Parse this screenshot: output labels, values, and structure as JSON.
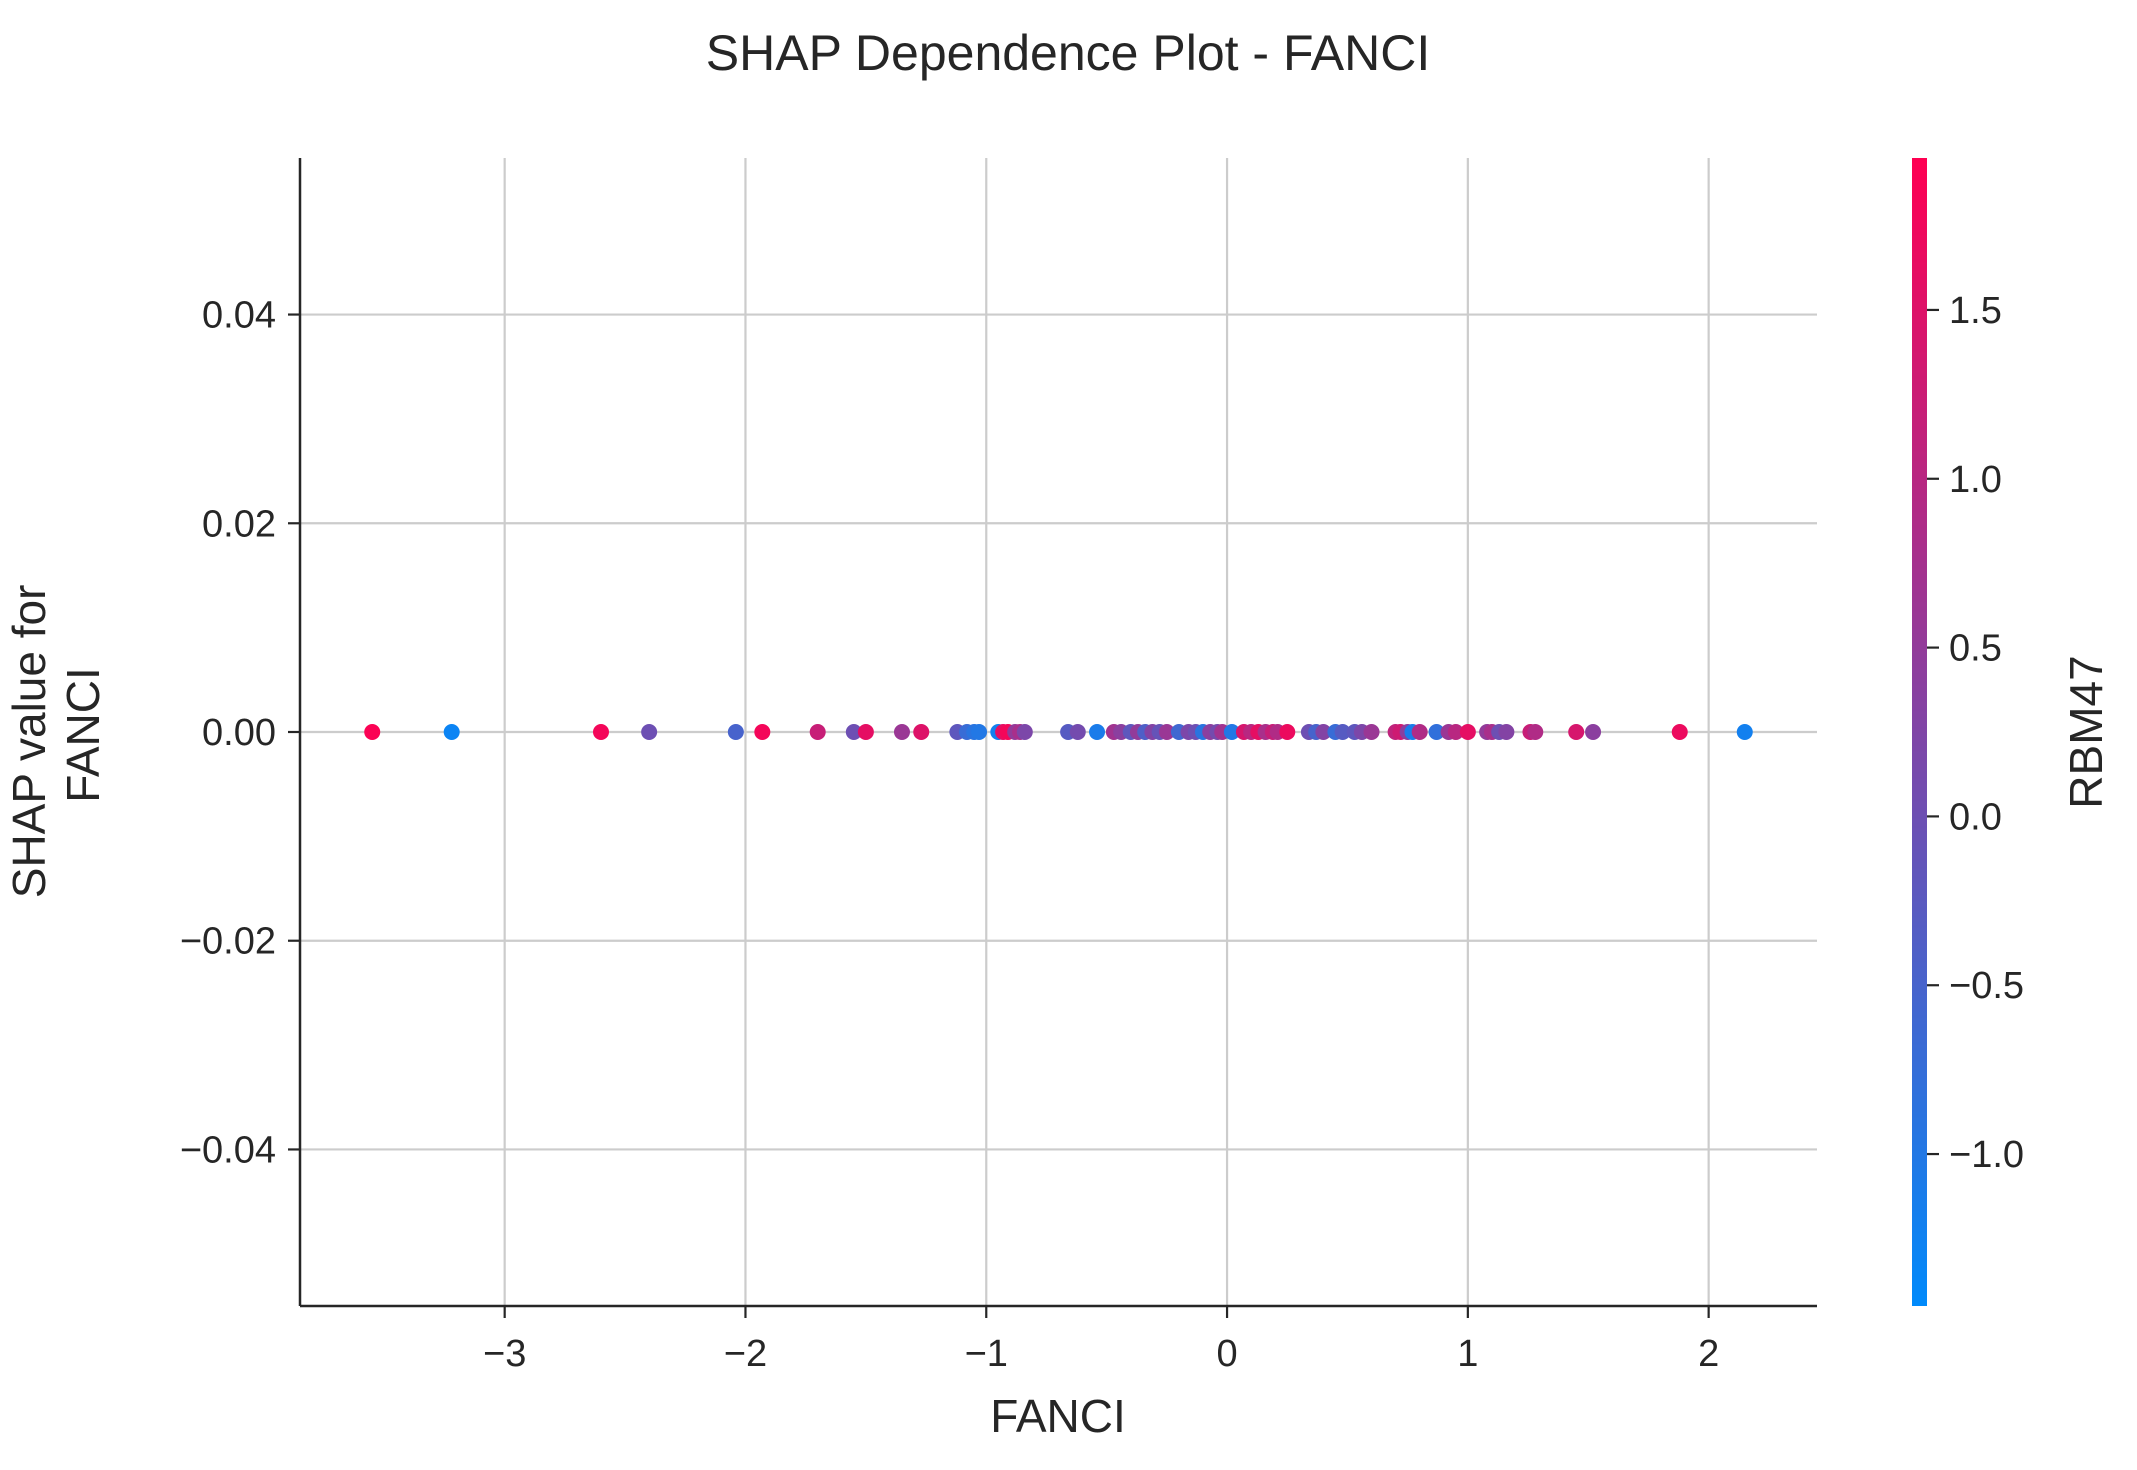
{
  "chart_data": {
    "type": "scatter",
    "title": "SHAP Dependence Plot - FANCI",
    "xlabel": "FANCI",
    "ylabel_lines": [
      "SHAP value for",
      "FANCI"
    ],
    "xlim": [
      -3.85,
      2.45
    ],
    "ylim": [
      -0.055,
      0.055
    ],
    "x_ticks": [
      -3,
      -2,
      -1,
      0,
      1,
      2
    ],
    "x_tick_labels": [
      "−3",
      "−2",
      "−1",
      "0",
      "1",
      "2"
    ],
    "y_ticks": [
      0.04,
      0.02,
      0.0,
      -0.02,
      -0.04
    ],
    "y_tick_labels": [
      "0.04",
      "0.02",
      "0.00",
      "−0.02",
      "−0.04"
    ],
    "grid": true,
    "colorbar": {
      "label": "RBM47",
      "range": [
        -1.45,
        1.95
      ],
      "ticks": [
        1.5,
        1.0,
        0.5,
        0.0,
        -0.5,
        -1.0
      ],
      "tick_labels": [
        "1.5",
        "1.0",
        "0.5",
        "0.0",
        "−0.5",
        "−1.0"
      ],
      "colormap": [
        "#008afb",
        "#ff0052"
      ]
    },
    "points": [
      {
        "x": -3.55,
        "y": 0.0,
        "c": 1.9
      },
      {
        "x": -3.22,
        "y": 0.0,
        "c": -1.3
      },
      {
        "x": -2.6,
        "y": 0.0,
        "c": 1.8
      },
      {
        "x": -2.4,
        "y": 0.0,
        "c": 0.0
      },
      {
        "x": -2.04,
        "y": 0.0,
        "c": -0.5
      },
      {
        "x": -1.93,
        "y": 0.0,
        "c": 1.8
      },
      {
        "x": -1.7,
        "y": 0.0,
        "c": 1.2
      },
      {
        "x": -1.55,
        "y": 0.0,
        "c": 0.0
      },
      {
        "x": -1.5,
        "y": 0.0,
        "c": 1.6
      },
      {
        "x": -1.35,
        "y": 0.0,
        "c": 0.6
      },
      {
        "x": -1.27,
        "y": 0.0,
        "c": 1.5
      },
      {
        "x": -1.12,
        "y": 0.0,
        "c": -0.2
      },
      {
        "x": -1.08,
        "y": 0.0,
        "c": -0.7
      },
      {
        "x": -1.05,
        "y": 0.0,
        "c": -0.9
      },
      {
        "x": -1.03,
        "y": 0.0,
        "c": -1.0
      },
      {
        "x": -0.95,
        "y": 0.0,
        "c": -1.2
      },
      {
        "x": -0.93,
        "y": 0.0,
        "c": 1.6
      },
      {
        "x": -0.91,
        "y": 0.0,
        "c": 1.8
      },
      {
        "x": -0.88,
        "y": 0.0,
        "c": 0.5
      },
      {
        "x": -0.86,
        "y": 0.0,
        "c": 0.8
      },
      {
        "x": -0.84,
        "y": 0.0,
        "c": 0.2
      },
      {
        "x": -0.66,
        "y": 0.0,
        "c": -0.3
      },
      {
        "x": -0.62,
        "y": 0.0,
        "c": 0.1
      },
      {
        "x": -0.54,
        "y": 0.0,
        "c": -1.1
      },
      {
        "x": -0.47,
        "y": 0.0,
        "c": 0.7
      },
      {
        "x": -0.44,
        "y": 0.0,
        "c": 0.4
      },
      {
        "x": -0.4,
        "y": 0.0,
        "c": -0.2
      },
      {
        "x": -0.37,
        "y": 0.0,
        "c": 0.5
      },
      {
        "x": -0.34,
        "y": 0.0,
        "c": -0.4
      },
      {
        "x": -0.31,
        "y": 0.0,
        "c": 0.3
      },
      {
        "x": -0.28,
        "y": 0.0,
        "c": -0.1
      },
      {
        "x": -0.25,
        "y": 0.0,
        "c": 0.6
      },
      {
        "x": -0.2,
        "y": 0.0,
        "c": -0.6
      },
      {
        "x": -0.16,
        "y": 0.0,
        "c": 0.2
      },
      {
        "x": -0.13,
        "y": 0.0,
        "c": 0.0
      },
      {
        "x": -0.1,
        "y": 0.0,
        "c": -0.9
      },
      {
        "x": -0.07,
        "y": 0.0,
        "c": 0.4
      },
      {
        "x": -0.04,
        "y": 0.0,
        "c": 0.1
      },
      {
        "x": -0.02,
        "y": 0.0,
        "c": 0.7
      },
      {
        "x": 0.02,
        "y": 0.0,
        "c": -1.0
      },
      {
        "x": 0.07,
        "y": 0.0,
        "c": 1.4
      },
      {
        "x": 0.1,
        "y": 0.0,
        "c": 1.0
      },
      {
        "x": 0.13,
        "y": 0.0,
        "c": 1.6
      },
      {
        "x": 0.16,
        "y": 0.0,
        "c": 0.8
      },
      {
        "x": 0.19,
        "y": 0.0,
        "c": 1.2
      },
      {
        "x": 0.21,
        "y": 0.0,
        "c": 0.9
      },
      {
        "x": 0.25,
        "y": 0.0,
        "c": 1.7
      },
      {
        "x": 0.34,
        "y": 0.0,
        "c": 0.0
      },
      {
        "x": 0.37,
        "y": 0.0,
        "c": -0.5
      },
      {
        "x": 0.4,
        "y": 0.0,
        "c": 0.3
      },
      {
        "x": 0.45,
        "y": 0.0,
        "c": -0.7
      },
      {
        "x": 0.48,
        "y": 0.0,
        "c": -0.3
      },
      {
        "x": 0.53,
        "y": 0.0,
        "c": -0.2
      },
      {
        "x": 0.56,
        "y": 0.0,
        "c": 0.2
      },
      {
        "x": 0.6,
        "y": 0.0,
        "c": 0.6
      },
      {
        "x": 0.7,
        "y": 0.0,
        "c": 1.1
      },
      {
        "x": 0.72,
        "y": 0.0,
        "c": 1.3
      },
      {
        "x": 0.75,
        "y": 0.0,
        "c": 0.4
      },
      {
        "x": 0.77,
        "y": 0.0,
        "c": -1.1
      },
      {
        "x": 0.8,
        "y": 0.0,
        "c": 0.9
      },
      {
        "x": 0.87,
        "y": 0.0,
        "c": -0.8
      },
      {
        "x": 0.92,
        "y": 0.0,
        "c": 0.6
      },
      {
        "x": 0.95,
        "y": 0.0,
        "c": 1.0
      },
      {
        "x": 1.0,
        "y": 0.0,
        "c": 1.6
      },
      {
        "x": 1.08,
        "y": 0.0,
        "c": 0.5
      },
      {
        "x": 1.1,
        "y": 0.0,
        "c": 0.8
      },
      {
        "x": 1.13,
        "y": 0.0,
        "c": 0.0
      },
      {
        "x": 1.16,
        "y": 0.0,
        "c": 0.3
      },
      {
        "x": 1.26,
        "y": 0.0,
        "c": 1.2
      },
      {
        "x": 1.28,
        "y": 0.0,
        "c": 0.9
      },
      {
        "x": 1.45,
        "y": 0.0,
        "c": 1.4
      },
      {
        "x": 1.52,
        "y": 0.0,
        "c": 0.4
      },
      {
        "x": 1.88,
        "y": 0.0,
        "c": 1.7
      },
      {
        "x": 2.15,
        "y": 0.0,
        "c": -1.2
      }
    ]
  }
}
